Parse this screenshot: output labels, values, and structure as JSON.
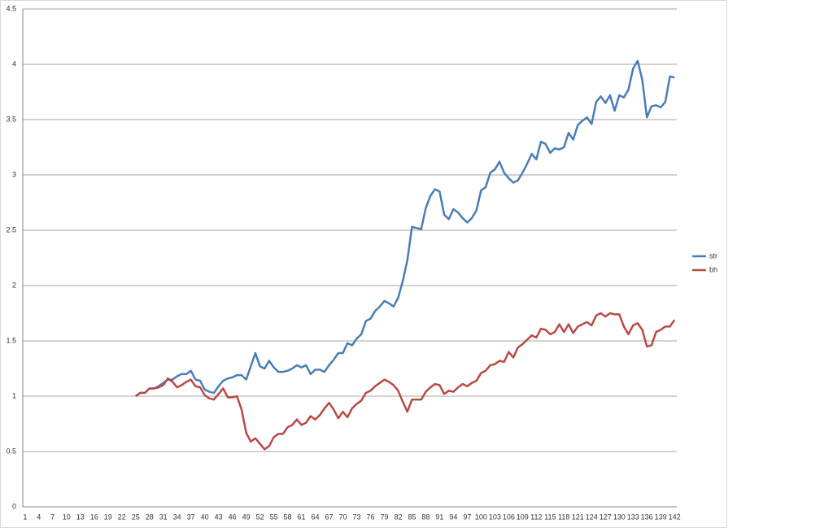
{
  "chart_data": {
    "type": "line",
    "categories": [
      "1",
      null,
      null,
      "4",
      null,
      null,
      "7",
      null,
      null,
      "10",
      null,
      null,
      "13",
      null,
      null,
      "16",
      null,
      null,
      "19",
      null,
      null,
      "22",
      null,
      null,
      "25",
      null,
      null,
      "28",
      null,
      null,
      "31",
      null,
      null,
      "34",
      null,
      null,
      "37",
      null,
      null,
      "40",
      null,
      null,
      "43",
      null,
      null,
      "46",
      null,
      null,
      "49",
      null,
      null,
      "52",
      null,
      null,
      "55",
      null,
      null,
      "58",
      null,
      null,
      "61",
      null,
      null,
      "64",
      null,
      null,
      "67",
      null,
      null,
      "70",
      null,
      null,
      "73",
      null,
      null,
      "76",
      null,
      null,
      "79",
      null,
      null,
      "82",
      null,
      null,
      "85",
      null,
      null,
      "88",
      null,
      null,
      "91",
      null,
      null,
      "94",
      null,
      null,
      "97",
      null,
      null,
      "100",
      null,
      null,
      "103",
      null,
      null,
      "106",
      null,
      null,
      "109",
      null,
      null,
      "112",
      null,
      null,
      "115",
      null,
      null,
      "118",
      null,
      null,
      "121",
      null,
      null,
      "124",
      null,
      null,
      "127",
      null,
      null,
      "130",
      null,
      null,
      "133",
      null,
      null,
      "136",
      null,
      null,
      "139",
      null,
      null,
      "142"
    ],
    "series": [
      {
        "name": "str",
        "color": "#4a7db5",
        "values": [
          null,
          null,
          null,
          null,
          null,
          null,
          null,
          null,
          null,
          null,
          null,
          null,
          null,
          null,
          null,
          null,
          null,
          null,
          null,
          null,
          null,
          null,
          null,
          null,
          1.0,
          1.03,
          1.03,
          1.07,
          1.07,
          1.09,
          1.12,
          1.15,
          1.15,
          1.18,
          1.2,
          1.2,
          1.23,
          1.15,
          1.14,
          1.06,
          1.04,
          1.03,
          1.09,
          1.14,
          1.16,
          1.17,
          1.19,
          1.19,
          1.15,
          1.27,
          1.39,
          1.27,
          1.25,
          1.32,
          1.26,
          1.22,
          1.22,
          1.23,
          1.25,
          1.28,
          1.26,
          1.28,
          1.2,
          1.24,
          1.24,
          1.22,
          1.28,
          1.33,
          1.39,
          1.39,
          1.48,
          1.46,
          1.52,
          1.56,
          1.68,
          1.7,
          1.77,
          1.81,
          1.86,
          1.84,
          1.81,
          1.89,
          2.04,
          2.23,
          2.53,
          2.52,
          2.51,
          2.7,
          2.81,
          2.87,
          2.85,
          2.64,
          2.6,
          2.69,
          2.66,
          2.61,
          2.57,
          2.61,
          2.68,
          2.86,
          2.89,
          3.02,
          3.05,
          3.12,
          3.02,
          2.97,
          2.93,
          2.95,
          3.02,
          3.1,
          3.19,
          3.14,
          3.3,
          3.28,
          3.2,
          3.24,
          3.23,
          3.25,
          3.38,
          3.32,
          3.45,
          3.49,
          3.52,
          3.46,
          3.66,
          3.71,
          3.65,
          3.72,
          3.58,
          3.72,
          3.7,
          3.77,
          3.96,
          4.03,
          3.86,
          3.52,
          3.62,
          3.63,
          3.61,
          3.66,
          3.89,
          3.88
        ]
      },
      {
        "name": "bh",
        "color": "#b84a48",
        "values": [
          null,
          null,
          null,
          null,
          null,
          null,
          null,
          null,
          null,
          null,
          null,
          null,
          null,
          null,
          null,
          null,
          null,
          null,
          null,
          null,
          null,
          null,
          null,
          null,
          1.0,
          1.03,
          1.03,
          1.07,
          1.07,
          1.08,
          1.1,
          1.16,
          1.13,
          1.08,
          1.1,
          1.13,
          1.15,
          1.09,
          1.08,
          1.01,
          0.98,
          0.97,
          1.02,
          1.07,
          0.99,
          0.99,
          1.0,
          0.88,
          0.67,
          0.59,
          0.62,
          0.57,
          0.52,
          0.55,
          0.63,
          0.66,
          0.66,
          0.72,
          0.74,
          0.79,
          0.74,
          0.76,
          0.82,
          0.79,
          0.83,
          0.89,
          0.94,
          0.88,
          0.8,
          0.86,
          0.81,
          0.89,
          0.93,
          0.96,
          1.03,
          1.05,
          1.09,
          1.12,
          1.15,
          1.13,
          1.1,
          1.05,
          0.95,
          0.86,
          0.97,
          0.97,
          0.97,
          1.04,
          1.08,
          1.11,
          1.1,
          1.02,
          1.05,
          1.04,
          1.08,
          1.11,
          1.09,
          1.12,
          1.14,
          1.21,
          1.23,
          1.28,
          1.29,
          1.32,
          1.31,
          1.4,
          1.35,
          1.44,
          1.47,
          1.51,
          1.55,
          1.53,
          1.61,
          1.6,
          1.56,
          1.58,
          1.65,
          1.58,
          1.65,
          1.57,
          1.63,
          1.65,
          1.67,
          1.64,
          1.73,
          1.75,
          1.72,
          1.75,
          1.74,
          1.74,
          1.63,
          1.56,
          1.64,
          1.66,
          1.6,
          1.45,
          1.46,
          1.58,
          1.6,
          1.63,
          1.63,
          1.69
        ]
      }
    ],
    "ylim": [
      0,
      4.5
    ],
    "yticks": [
      0,
      0.5,
      1,
      1.5,
      2,
      2.5,
      3,
      3.5,
      4,
      4.5
    ],
    "grid": true,
    "legend": "right"
  }
}
